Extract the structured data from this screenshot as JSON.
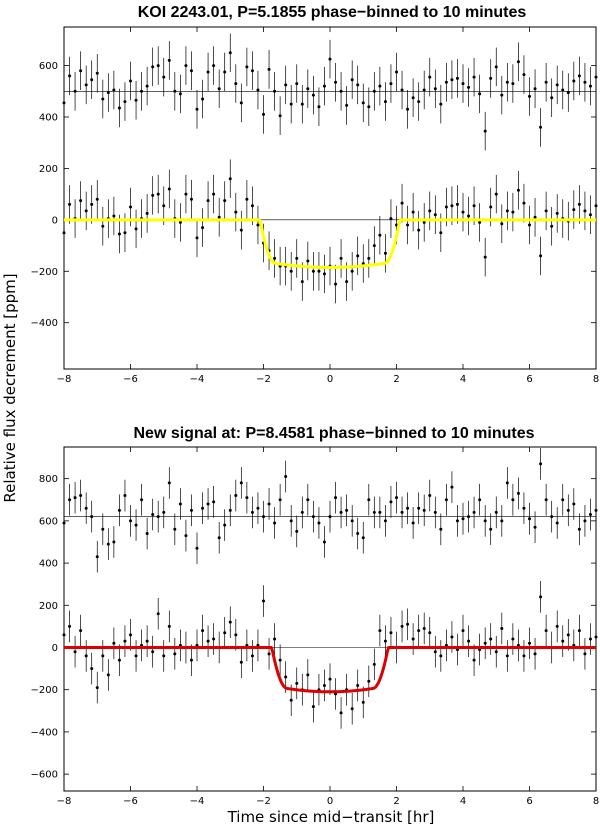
{
  "figure": {
    "ylabel": "Relative flux decrement [ppm]",
    "xlabel": "Time since mid−transit [hr]"
  },
  "chart_data": [
    {
      "type": "scatter",
      "title": "KOI 2243.01, P=5.1855 phase−binned to 10 minutes",
      "xlabel": "Time since mid−transit [hr]",
      "ylabel": "Relative flux decrement [ppm]",
      "xlim": [
        -8,
        8
      ],
      "ylim": [
        -580,
        750
      ],
      "xticks": [
        -8,
        -6,
        -4,
        -2,
        0,
        2,
        4,
        6,
        8
      ],
      "yticks": [
        -400,
        -200,
        0,
        200,
        400,
        600
      ],
      "reference_lines": [
        0,
        500
      ],
      "grid": false,
      "offset_series": {
        "baseline": 500,
        "error": 75,
        "x": [
          -8.0,
          -7.833,
          -7.667,
          -7.5,
          -7.333,
          -7.167,
          -7.0,
          -6.833,
          -6.667,
          -6.5,
          -6.333,
          -6.167,
          -6.0,
          -5.833,
          -5.667,
          -5.5,
          -5.333,
          -5.167,
          -5.0,
          -4.833,
          -4.667,
          -4.5,
          -4.333,
          -4.167,
          -4.0,
          -3.833,
          -3.667,
          -3.5,
          -3.333,
          -3.167,
          -3.0,
          -2.833,
          -2.667,
          -2.5,
          -2.333,
          -2.167,
          -2.0,
          -1.833,
          -1.667,
          -1.5,
          -1.333,
          -1.167,
          -1.0,
          -0.833,
          -0.667,
          -0.5,
          -0.333,
          -0.167,
          0.0,
          0.167,
          0.333,
          0.5,
          0.667,
          0.833,
          1.0,
          1.167,
          1.333,
          1.5,
          1.667,
          1.833,
          2.0,
          2.167,
          2.333,
          2.5,
          2.667,
          2.833,
          3.0,
          3.167,
          3.333,
          3.5,
          3.667,
          3.833,
          4.0,
          4.167,
          4.333,
          4.5,
          4.667,
          4.833,
          5.0,
          5.167,
          5.333,
          5.5,
          5.667,
          5.833,
          6.0,
          6.167,
          6.333,
          6.5,
          6.667,
          6.833,
          7.0,
          7.167,
          7.333,
          7.5,
          7.667,
          7.833,
          8.0
        ],
        "y": [
          455,
          560,
          500,
          580,
          525,
          545,
          570,
          470,
          495,
          505,
          435,
          460,
          540,
          465,
          500,
          520,
          595,
          600,
          555,
          620,
          500,
          490,
          600,
          580,
          430,
          470,
          575,
          600,
          510,
          575,
          650,
          530,
          455,
          595,
          580,
          505,
          410,
          585,
          500,
          405,
          525,
          450,
          530,
          450,
          510,
          485,
          440,
          520,
          625,
          535,
          500,
          445,
          545,
          525,
          455,
          440,
          500,
          520,
          460,
          530,
          575,
          505,
          430,
          475,
          460,
          505,
          555,
          510,
          450,
          535,
          545,
          550,
          530,
          515,
          555,
          490,
          345,
          550,
          595,
          485,
          535,
          530,
          615,
          565,
          480,
          510,
          360,
          535,
          475,
          525,
          505,
          495,
          540,
          560,
          535,
          520,
          555
        ]
      },
      "series": [
        {
          "marker": "dot",
          "error": 75,
          "x": [
            -8.0,
            -7.833,
            -7.667,
            -7.5,
            -7.333,
            -7.167,
            -7.0,
            -6.833,
            -6.667,
            -6.5,
            -6.333,
            -6.167,
            -6.0,
            -5.833,
            -5.667,
            -5.5,
            -5.333,
            -5.167,
            -5.0,
            -4.833,
            -4.667,
            -4.5,
            -4.333,
            -4.167,
            -4.0,
            -3.833,
            -3.667,
            -3.5,
            -3.333,
            -3.167,
            -3.0,
            -2.833,
            -2.667,
            -2.5,
            -2.333,
            -2.167,
            -2.0,
            -1.833,
            -1.667,
            -1.5,
            -1.333,
            -1.167,
            -1.0,
            -0.833,
            -0.667,
            -0.5,
            -0.333,
            -0.167,
            0.0,
            0.167,
            0.333,
            0.5,
            0.667,
            0.833,
            1.0,
            1.167,
            1.333,
            1.5,
            1.667,
            1.833,
            2.0,
            2.167,
            2.333,
            2.5,
            2.667,
            2.833,
            3.0,
            3.167,
            3.333,
            3.5,
            3.667,
            3.833,
            4.0,
            4.167,
            4.333,
            4.5,
            4.667,
            4.833,
            5.0,
            5.167,
            5.333,
            5.5,
            5.667,
            5.833,
            6.0,
            6.167,
            6.333,
            6.5,
            6.667,
            6.833,
            7.0,
            7.167,
            7.333,
            7.5,
            7.667,
            7.833,
            8.0
          ],
          "y": [
            -50,
            60,
            5,
            75,
            35,
            60,
            80,
            -25,
            5,
            15,
            -55,
            -50,
            50,
            -35,
            5,
            25,
            95,
            100,
            55,
            120,
            5,
            -10,
            100,
            80,
            -70,
            -30,
            75,
            100,
            10,
            75,
            160,
            30,
            -40,
            80,
            55,
            -20,
            -90,
            -120,
            -150,
            -180,
            -180,
            -200,
            -150,
            -240,
            -160,
            -200,
            -200,
            -210,
            -180,
            -250,
            -150,
            -240,
            -200,
            -140,
            -170,
            -150,
            -100,
            -60,
            -130,
            5,
            -20,
            65,
            -20,
            30,
            -40,
            -10,
            35,
            20,
            -50,
            50,
            55,
            60,
            30,
            15,
            55,
            -10,
            -145,
            50,
            100,
            -15,
            35,
            30,
            115,
            65,
            -20,
            10,
            -140,
            35,
            -25,
            25,
            5,
            -5,
            40,
            60,
            35,
            20,
            55
          ]
        }
      ],
      "model": {
        "color": "#ffff00",
        "depth": 185,
        "half_duration": 2.1,
        "ingress": 0.45
      }
    },
    {
      "type": "scatter",
      "title": "New signal at: P=8.4581 phase−binned to 10 minutes",
      "xlabel": "Time since mid−transit [hr]",
      "ylabel": "Relative flux decrement [ppm]",
      "xlim": [
        -8,
        8
      ],
      "ylim": [
        -680,
        950
      ],
      "xticks": [
        -8,
        -6,
        -4,
        -2,
        0,
        2,
        4,
        6,
        8
      ],
      "yticks": [
        -600,
        -400,
        -200,
        0,
        200,
        400,
        600,
        800
      ],
      "reference_lines": [
        0,
        620
      ],
      "grid": false,
      "offset_series": {
        "baseline": 620,
        "error": 75,
        "x": [
          -8.0,
          -7.833,
          -7.667,
          -7.5,
          -7.333,
          -7.167,
          -7.0,
          -6.833,
          -6.667,
          -6.5,
          -6.333,
          -6.167,
          -6.0,
          -5.833,
          -5.667,
          -5.5,
          -5.333,
          -5.167,
          -5.0,
          -4.833,
          -4.667,
          -4.5,
          -4.333,
          -4.167,
          -4.0,
          -3.833,
          -3.667,
          -3.5,
          -3.333,
          -3.167,
          -3.0,
          -2.833,
          -2.667,
          -2.5,
          -2.333,
          -2.167,
          -2.0,
          -1.833,
          -1.667,
          -1.5,
          -1.333,
          -1.167,
          -1.0,
          -0.833,
          -0.667,
          -0.5,
          -0.333,
          -0.167,
          0.0,
          0.167,
          0.333,
          0.5,
          0.667,
          0.833,
          1.0,
          1.167,
          1.333,
          1.5,
          1.667,
          1.833,
          2.0,
          2.167,
          2.333,
          2.5,
          2.667,
          2.833,
          3.0,
          3.167,
          3.333,
          3.5,
          3.667,
          3.833,
          4.0,
          4.167,
          4.333,
          4.5,
          4.667,
          4.833,
          5.0,
          5.167,
          5.333,
          5.5,
          5.667,
          5.833,
          6.0,
          6.167,
          6.333,
          6.5,
          6.667,
          6.833,
          7.0,
          7.167,
          7.333,
          7.5,
          7.667,
          7.833,
          8.0
        ],
        "y": [
          590,
          700,
          710,
          720,
          660,
          620,
          430,
          560,
          490,
          500,
          650,
          720,
          600,
          580,
          700,
          540,
          630,
          620,
          640,
          780,
          560,
          680,
          530,
          650,
          470,
          660,
          680,
          690,
          520,
          580,
          650,
          720,
          780,
          710,
          640,
          660,
          620,
          680,
          590,
          700,
          810,
          600,
          550,
          640,
          700,
          620,
          590,
          500,
          620,
          710,
          640,
          650,
          600,
          540,
          520,
          700,
          640,
          640,
          600,
          690,
          710,
          640,
          660,
          590,
          660,
          650,
          720,
          640,
          560,
          700,
          760,
          600,
          610,
          620,
          640,
          700,
          600,
          560,
          640,
          600,
          780,
          700,
          730,
          660,
          610,
          570,
          870,
          700,
          620,
          590,
          700,
          650,
          680,
          560,
          600,
          630,
          650
        ]
      },
      "series": [
        {
          "marker": "dot",
          "error": 75,
          "x": [
            -8.0,
            -7.833,
            -7.667,
            -7.5,
            -7.333,
            -7.167,
            -7.0,
            -6.833,
            -6.667,
            -6.5,
            -6.333,
            -6.167,
            -6.0,
            -5.833,
            -5.667,
            -5.5,
            -5.333,
            -5.167,
            -5.0,
            -4.833,
            -4.667,
            -4.5,
            -4.333,
            -4.167,
            -4.0,
            -3.833,
            -3.667,
            -3.5,
            -3.333,
            -3.167,
            -3.0,
            -2.833,
            -2.667,
            -2.5,
            -2.333,
            -2.167,
            -2.0,
            -1.833,
            -1.667,
            -1.5,
            -1.333,
            -1.167,
            -1.0,
            -0.833,
            -0.667,
            -0.5,
            -0.333,
            -0.167,
            0.0,
            0.167,
            0.333,
            0.5,
            0.667,
            0.833,
            1.0,
            1.167,
            1.333,
            1.5,
            1.667,
            1.833,
            2.0,
            2.167,
            2.333,
            2.5,
            2.667,
            2.833,
            3.0,
            3.167,
            3.333,
            3.5,
            3.667,
            3.833,
            4.0,
            4.167,
            4.333,
            4.5,
            4.667,
            4.833,
            5.0,
            5.167,
            5.333,
            5.5,
            5.667,
            5.833,
            6.0,
            6.167,
            6.333,
            6.5,
            6.667,
            6.833,
            7.0,
            7.167,
            7.333,
            7.5,
            7.667,
            7.833,
            8.0
          ],
          "y": [
            60,
            100,
            -20,
            80,
            -40,
            -100,
            -190,
            -40,
            -130,
            20,
            -60,
            30,
            60,
            -40,
            10,
            30,
            -20,
            160,
            -40,
            100,
            -30,
            10,
            0,
            -60,
            10,
            80,
            30,
            40,
            0,
            70,
            120,
            60,
            -70,
            10,
            -40,
            10,
            220,
            -30,
            40,
            -60,
            -140,
            -250,
            -170,
            -200,
            -130,
            -280,
            -200,
            -180,
            -150,
            -220,
            -310,
            -200,
            -290,
            -180,
            -260,
            -160,
            -80,
            80,
            30,
            70,
            0,
            100,
            110,
            40,
            80,
            90,
            70,
            -20,
            -40,
            10,
            50,
            -10,
            80,
            30,
            -60,
            -10,
            20,
            40,
            -20,
            90,
            -40,
            40,
            10,
            -40,
            20,
            -30,
            240,
            80,
            0,
            100,
            30,
            60,
            10,
            80,
            -30,
            40,
            50
          ]
        }
      ],
      "model": {
        "color": "#dd0000",
        "depth": 210,
        "half_duration": 1.75,
        "ingress": 0.45
      }
    }
  ]
}
